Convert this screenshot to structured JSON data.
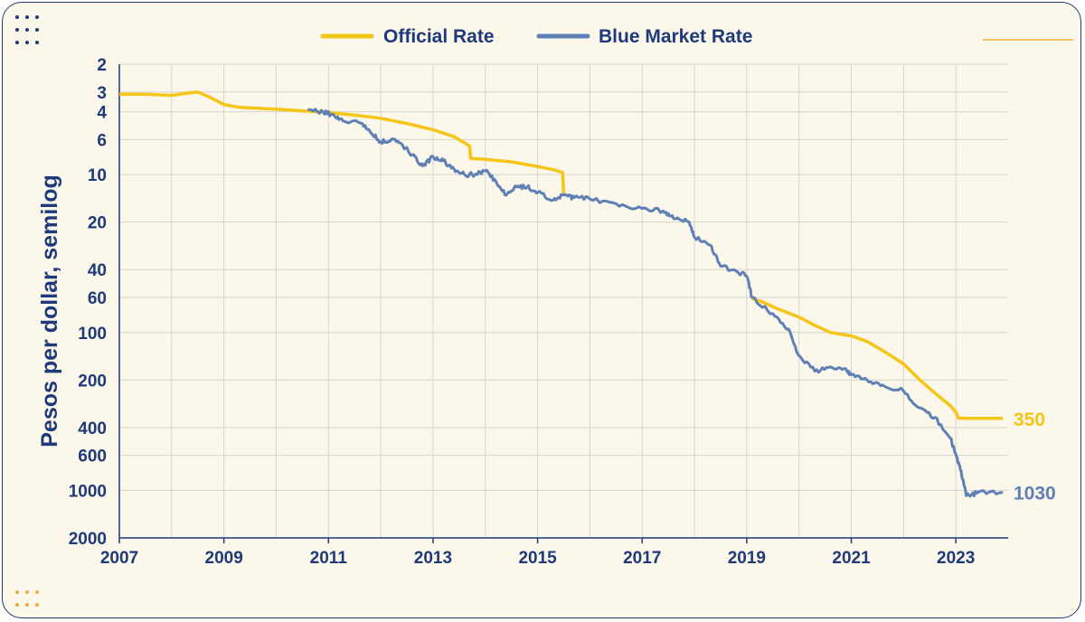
{
  "chart_data": {
    "type": "line",
    "title": "",
    "ylabel": "Pesos per dollar, semilog",
    "xlabel": "",
    "y_scale": "log",
    "y_inverted": true,
    "ylim": [
      2,
      2000
    ],
    "xlim": [
      2007,
      2024
    ],
    "x_ticks": [
      "2007",
      "2009",
      "2011",
      "2013",
      "2015",
      "2017",
      "2019",
      "2021",
      "2023"
    ],
    "y_ticks": [
      "2",
      "3",
      "4",
      "6",
      "10",
      "20",
      "40",
      "60",
      "100",
      "200",
      "400",
      "600",
      "1000",
      "2000"
    ],
    "grid": true,
    "legend_position": "top",
    "series": [
      {
        "name": "Official Rate",
        "color": "#f5c518",
        "end_label": "350",
        "points": [
          [
            2007.0,
            3.1
          ],
          [
            2007.5,
            3.1
          ],
          [
            2008.0,
            3.15
          ],
          [
            2008.3,
            3.05
          ],
          [
            2008.5,
            3.0
          ],
          [
            2008.7,
            3.2
          ],
          [
            2009.0,
            3.6
          ],
          [
            2009.3,
            3.75
          ],
          [
            2010.0,
            3.85
          ],
          [
            2010.5,
            3.95
          ],
          [
            2011.0,
            4.05
          ],
          [
            2011.5,
            4.2
          ],
          [
            2012.0,
            4.4
          ],
          [
            2012.5,
            4.75
          ],
          [
            2013.0,
            5.2
          ],
          [
            2013.4,
            5.75
          ],
          [
            2013.6,
            6.3
          ],
          [
            2013.7,
            6.6
          ],
          [
            2013.72,
            7.9
          ],
          [
            2014.0,
            8.0
          ],
          [
            2014.5,
            8.3
          ],
          [
            2015.0,
            8.9
          ],
          [
            2015.3,
            9.3
          ],
          [
            2015.48,
            9.7
          ],
          [
            2015.5,
            13.3
          ]
        ],
        "points_after_gap": [
          [
            2019.1,
            61.0
          ],
          [
            2019.3,
            64.0
          ],
          [
            2019.6,
            71.0
          ],
          [
            2020.0,
            80.0
          ],
          [
            2020.3,
            90.0
          ],
          [
            2020.6,
            100.0
          ],
          [
            2021.0,
            105.0
          ],
          [
            2021.3,
            114.0
          ],
          [
            2021.6,
            130.0
          ],
          [
            2022.0,
            158.0
          ],
          [
            2022.3,
            198.0
          ],
          [
            2022.6,
            242.0
          ],
          [
            2022.9,
            292.0
          ],
          [
            2023.0,
            320.0
          ],
          [
            2023.05,
            350.0
          ],
          [
            2023.9,
            350.0
          ]
        ]
      },
      {
        "name": "Blue Market Rate",
        "color": "#5f80b5",
        "end_label": "1030",
        "points": [
          [
            2010.6,
            3.9
          ],
          [
            2010.9,
            4.0
          ],
          [
            2011.1,
            4.2
          ],
          [
            2011.3,
            4.6
          ],
          [
            2011.6,
            4.7
          ],
          [
            2011.8,
            5.4
          ],
          [
            2012.0,
            6.2
          ],
          [
            2012.2,
            6.0
          ],
          [
            2012.4,
            6.4
          ],
          [
            2012.6,
            7.5
          ],
          [
            2012.8,
            8.8
          ],
          [
            2013.0,
            7.7
          ],
          [
            2013.2,
            8.2
          ],
          [
            2013.4,
            9.2
          ],
          [
            2013.6,
            10.0
          ],
          [
            2013.8,
            10.0
          ],
          [
            2014.0,
            9.5
          ],
          [
            2014.2,
            11.0
          ],
          [
            2014.4,
            13.5
          ],
          [
            2014.6,
            12.0
          ],
          [
            2014.8,
            12.0
          ],
          [
            2015.0,
            13.0
          ],
          [
            2015.3,
            14.5
          ],
          [
            2015.5,
            13.5
          ],
          [
            2015.7,
            14.0
          ],
          [
            2016.0,
            14.3
          ],
          [
            2016.5,
            15.3
          ],
          [
            2017.0,
            16.4
          ],
          [
            2017.4,
            17.0
          ],
          [
            2017.6,
            19.0
          ],
          [
            2017.9,
            20.0
          ],
          [
            2018.0,
            25.0
          ],
          [
            2018.3,
            28.0
          ],
          [
            2018.5,
            38.0
          ],
          [
            2018.8,
            41.0
          ],
          [
            2019.0,
            44.0
          ],
          [
            2019.1,
            60.0
          ],
          [
            2019.5,
            76.0
          ],
          [
            2019.8,
            95.0
          ],
          [
            2020.0,
            140.0
          ],
          [
            2020.3,
            176.0
          ],
          [
            2020.6,
            165.0
          ],
          [
            2020.9,
            170.0
          ],
          [
            2021.0,
            185.0
          ],
          [
            2021.3,
            200.0
          ],
          [
            2021.6,
            215.0
          ],
          [
            2022.0,
            235.0
          ],
          [
            2022.3,
            300.0
          ],
          [
            2022.6,
            345.0
          ],
          [
            2022.9,
            470.0
          ],
          [
            2023.0,
            590.0
          ],
          [
            2023.1,
            750.0
          ],
          [
            2023.2,
            1080.0
          ],
          [
            2023.4,
            1040.0
          ],
          [
            2023.9,
            1030.0
          ]
        ]
      }
    ]
  }
}
